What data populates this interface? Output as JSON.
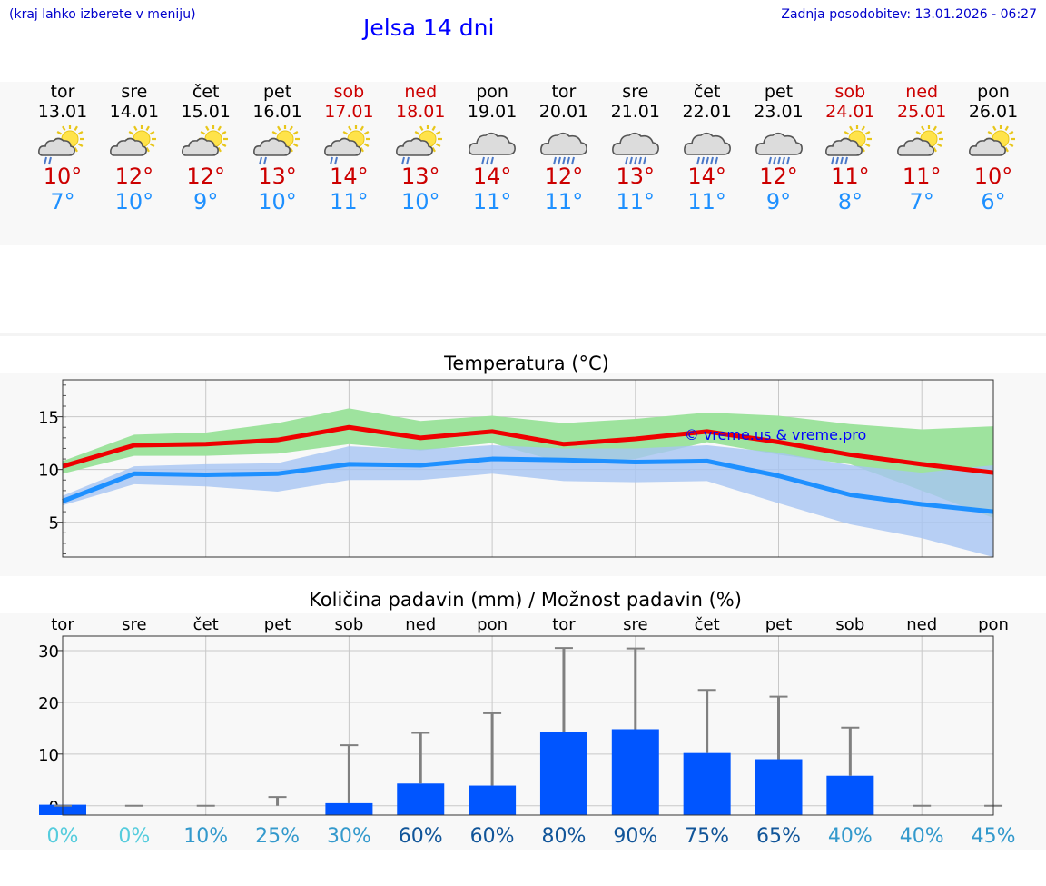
{
  "header": {
    "hint": "(kraj lahko izberete v meniju)",
    "title": "Jelsa 14 dni",
    "updated": "Zadnja posodobitev: 13.01.2026 - 06:27"
  },
  "days": [
    {
      "name": "tor",
      "date": "13.01",
      "weekend": false,
      "icon": "sun-cloud-rain-icon",
      "tmax": "10°",
      "tmin": "7°"
    },
    {
      "name": "sre",
      "date": "14.01",
      "weekend": false,
      "icon": "sun-cloud-icon",
      "tmax": "12°",
      "tmin": "10°"
    },
    {
      "name": "čet",
      "date": "15.01",
      "weekend": false,
      "icon": "sun-cloud-icon",
      "tmax": "12°",
      "tmin": "9°"
    },
    {
      "name": "pet",
      "date": "16.01",
      "weekend": false,
      "icon": "sun-cloud-rain-icon",
      "tmax": "13°",
      "tmin": "10°"
    },
    {
      "name": "sob",
      "date": "17.01",
      "weekend": true,
      "icon": "sun-cloud-rain-icon",
      "tmax": "14°",
      "tmin": "11°"
    },
    {
      "name": "ned",
      "date": "18.01",
      "weekend": true,
      "icon": "sun-cloud-rain-icon",
      "tmax": "13°",
      "tmin": "10°"
    },
    {
      "name": "pon",
      "date": "19.01",
      "weekend": false,
      "icon": "cloud-rain-icon",
      "tmax": "14°",
      "tmin": "11°"
    },
    {
      "name": "tor",
      "date": "20.01",
      "weekend": false,
      "icon": "cloud-heavy-rain-icon",
      "tmax": "12°",
      "tmin": "11°"
    },
    {
      "name": "sre",
      "date": "21.01",
      "weekend": false,
      "icon": "cloud-heavy-rain-icon",
      "tmax": "13°",
      "tmin": "11°"
    },
    {
      "name": "čet",
      "date": "22.01",
      "weekend": false,
      "icon": "cloud-heavy-rain-icon",
      "tmax": "14°",
      "tmin": "11°"
    },
    {
      "name": "pet",
      "date": "23.01",
      "weekend": false,
      "icon": "cloud-heavy-rain-icon",
      "tmax": "12°",
      "tmin": "9°"
    },
    {
      "name": "sob",
      "date": "24.01",
      "weekend": true,
      "icon": "sun-cloud-heavy-rain-icon",
      "tmax": "11°",
      "tmin": "8°"
    },
    {
      "name": "ned",
      "date": "25.01",
      "weekend": true,
      "icon": "sun-cloud-icon",
      "tmax": "11°",
      "tmin": "7°"
    },
    {
      "name": "pon",
      "date": "26.01",
      "weekend": false,
      "icon": "sun-cloud-icon",
      "tmax": "10°",
      "tmin": "6°"
    }
  ],
  "colors": {
    "max_line": "#ee0000",
    "min_line": "#1e90ff",
    "max_band": "#9ee39e",
    "min_band": "#a6c4f2",
    "bar": "#0055ff",
    "whisker": "#808080",
    "title": "#0000ff",
    "weekend": "#cc0000"
  },
  "chart_data": [
    {
      "type": "line",
      "title": "Temperatura (°C)",
      "watermark": "© vreme.us & vreme.pro",
      "ylim": [
        1.7,
        18.5
      ],
      "yticks": [
        5,
        10,
        15
      ],
      "x": [
        0,
        1,
        2,
        3,
        4,
        5,
        6,
        7,
        8,
        9,
        10,
        11,
        12,
        13
      ],
      "series": [
        {
          "name": "max",
          "values": [
            10.3,
            12.3,
            12.4,
            12.8,
            14.0,
            13.0,
            13.6,
            12.4,
            12.9,
            13.6,
            12.6,
            11.4,
            10.5,
            9.7
          ],
          "band_low": [
            9.6,
            11.3,
            11.3,
            11.5,
            12.4,
            11.8,
            12.5,
            10.6,
            11.0,
            12.6,
            11.4,
            10.5,
            8.0,
            5.4
          ],
          "band_high": [
            10.8,
            13.3,
            13.5,
            14.4,
            15.8,
            14.6,
            15.1,
            14.4,
            14.8,
            15.4,
            15.1,
            14.3,
            13.8,
            14.1
          ]
        },
        {
          "name": "min",
          "values": [
            7.0,
            9.6,
            9.5,
            9.6,
            10.5,
            10.4,
            11.0,
            10.9,
            10.7,
            10.8,
            9.4,
            7.6,
            6.7,
            6.0
          ],
          "band_low": [
            6.6,
            8.6,
            8.4,
            7.9,
            9.0,
            9.0,
            9.6,
            8.9,
            8.8,
            8.9,
            6.8,
            4.8,
            3.5,
            1.7
          ],
          "band_high": [
            7.5,
            10.3,
            10.5,
            10.6,
            12.2,
            11.9,
            12.3,
            12.0,
            12.0,
            12.3,
            11.6,
            10.4,
            9.7,
            10.4
          ]
        }
      ]
    },
    {
      "type": "bar",
      "title": "Količina padavin (mm) / Možnost padavin (%)",
      "categories": [
        "tor",
        "sre",
        "čet",
        "pet",
        "sob",
        "ned",
        "pon",
        "tor",
        "sre",
        "čet",
        "pet",
        "sob",
        "ned",
        "pon"
      ],
      "values": [
        0.2,
        0,
        0,
        0,
        0.5,
        4.3,
        3.9,
        14.2,
        14.8,
        10.2,
        9.0,
        5.8,
        0,
        0
      ],
      "max_values": [
        0,
        0,
        0,
        1.7,
        11.7,
        14.1,
        17.9,
        30.5,
        30.4,
        22.4,
        21.1,
        15.1,
        0,
        0
      ],
      "ylim": [
        -1.8,
        32.8
      ],
      "yticks": [
        0,
        10,
        20,
        30
      ],
      "probability": [
        "0%",
        "0%",
        "10%",
        "25%",
        "30%",
        "60%",
        "60%",
        "80%",
        "90%",
        "75%",
        "65%",
        "40%",
        "40%",
        "45%"
      ],
      "probability_colors": [
        "#55ccdd",
        "#55ccdd",
        "#3399cc",
        "#3399cc",
        "#3399cc",
        "#115599",
        "#115599",
        "#115599",
        "#115599",
        "#115599",
        "#115599",
        "#3399cc",
        "#3399cc",
        "#3399cc"
      ]
    }
  ]
}
